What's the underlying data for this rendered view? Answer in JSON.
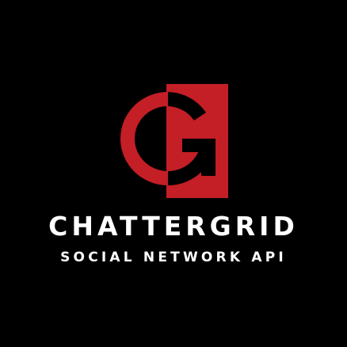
{
  "brand": {
    "name": "CHATTERGRID",
    "tagline": "SOCIAL NETWORK API"
  },
  "logo": {
    "icon": "g-monogram-icon",
    "accent_color": "#c41e26",
    "inverse_color": "#000000"
  },
  "colors": {
    "background": "#000000",
    "text": "#ffffff"
  }
}
